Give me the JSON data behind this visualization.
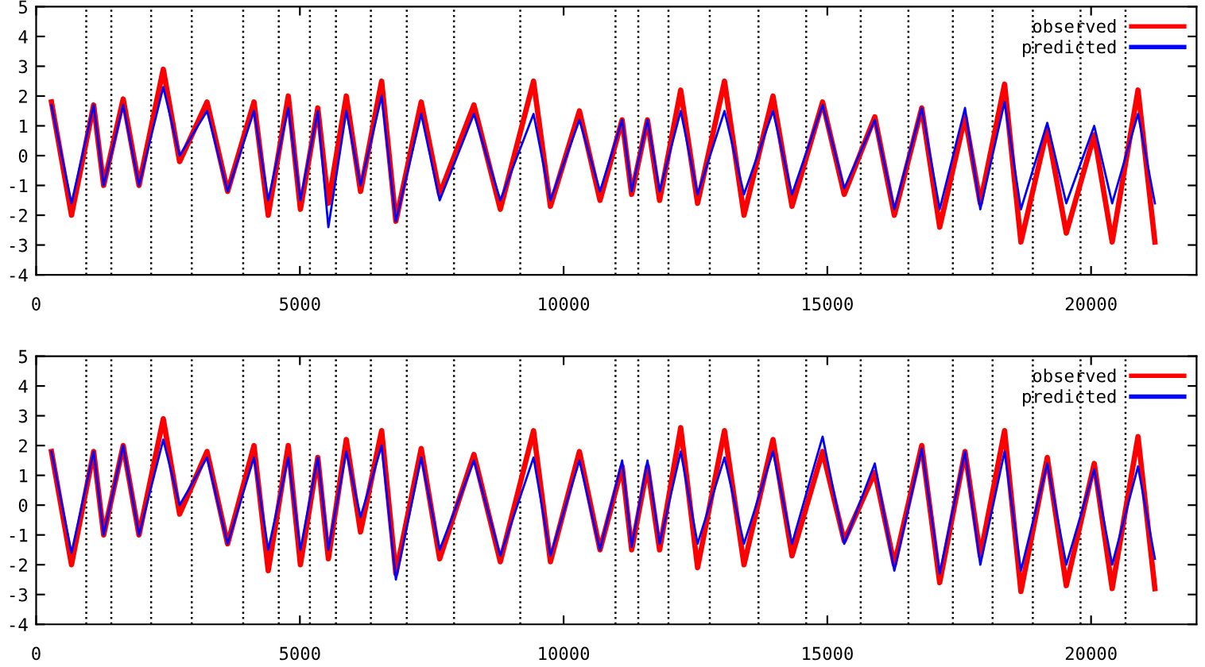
{
  "chart_data": [
    {
      "type": "line",
      "xlim": [
        0,
        22000
      ],
      "xticks": [
        0,
        5000,
        10000,
        15000,
        20000
      ],
      "ylim": [
        -4,
        5
      ],
      "yticks": [
        -4,
        -3,
        -2,
        -1,
        0,
        1,
        2,
        3,
        4,
        5
      ],
      "grid": false,
      "legend": "top right",
      "line_style": "solid",
      "marker": "none",
      "x": [
        290,
        670,
        1090,
        1280,
        1650,
        1950,
        2410,
        2720,
        3240,
        3630,
        4130,
        4400,
        4780,
        5010,
        5340,
        5540,
        5880,
        6150,
        6550,
        6820,
        7300,
        7650,
        8300,
        8800,
        9430,
        9750,
        10300,
        10690,
        11110,
        11290,
        11590,
        11820,
        12220,
        12540,
        13050,
        13420,
        13970,
        14330,
        14910,
        15320,
        15900,
        16270,
        16790,
        17130,
        17610,
        17900,
        18360,
        18670,
        19170,
        19530,
        20060,
        20400,
        20890,
        21210
      ],
      "series": [
        {
          "name": "observed",
          "color": "#ff0000",
          "values": [
            1.8,
            -2.0,
            1.7,
            -1.0,
            1.9,
            -1.0,
            2.9,
            -0.2,
            1.8,
            -1.2,
            1.8,
            -2.0,
            2.0,
            -1.8,
            1.6,
            -1.6,
            2.0,
            -1.2,
            2.5,
            -2.2,
            1.8,
            -1.3,
            1.7,
            -1.8,
            2.5,
            -1.7,
            1.5,
            -1.5,
            1.2,
            -1.3,
            1.2,
            -1.5,
            2.2,
            -1.6,
            2.5,
            -2.0,
            2.0,
            -1.7,
            1.8,
            -1.3,
            1.3,
            -2.0,
            1.6,
            -2.4,
            1.3,
            -1.6,
            2.4,
            -2.9,
            0.9,
            -2.6,
            0.7,
            -2.9,
            2.2,
            -2.9
          ]
        },
        {
          "name": "predicted",
          "color": "#0000ff",
          "values": [
            1.7,
            -1.6,
            1.7,
            -1.0,
            1.7,
            -1.0,
            2.3,
            0.0,
            1.5,
            -1.2,
            1.5,
            -1.5,
            1.6,
            -1.5,
            1.5,
            -2.4,
            1.5,
            -1.0,
            2.0,
            -2.2,
            1.4,
            -1.5,
            1.4,
            -1.5,
            1.4,
            -1.5,
            1.2,
            -1.2,
            1.2,
            -1.2,
            1.2,
            -1.2,
            1.5,
            -1.3,
            1.5,
            -1.3,
            1.5,
            -1.3,
            1.7,
            -1.1,
            1.2,
            -1.8,
            1.6,
            -1.8,
            1.6,
            -1.8,
            1.8,
            -1.8,
            1.1,
            -1.6,
            1.0,
            -1.6,
            1.4,
            -1.6
          ]
        }
      ],
      "ref_lines": [
        {
          "axis": "x",
          "value": 950,
          "color": "#000000",
          "line_style": "dotted"
        },
        {
          "axis": "x",
          "value": 1425,
          "color": "#000000",
          "line_style": "dotted"
        },
        {
          "axis": "x",
          "value": 2180,
          "color": "#000000",
          "line_style": "dotted"
        },
        {
          "axis": "x",
          "value": 2950,
          "color": "#000000",
          "line_style": "dotted"
        },
        {
          "axis": "x",
          "value": 3925,
          "color": "#000000",
          "line_style": "dotted"
        },
        {
          "axis": "x",
          "value": 4600,
          "color": "#000000",
          "line_style": "dotted"
        },
        {
          "axis": "x",
          "value": 5190,
          "color": "#000000",
          "line_style": "dotted"
        },
        {
          "axis": "x",
          "value": 5684,
          "color": "#000000",
          "line_style": "dotted"
        },
        {
          "axis": "x",
          "value": 6346,
          "color": "#000000",
          "line_style": "dotted"
        },
        {
          "axis": "x",
          "value": 7027,
          "color": "#000000",
          "line_style": "dotted"
        },
        {
          "axis": "x",
          "value": 7922,
          "color": "#000000",
          "line_style": "dotted"
        },
        {
          "axis": "x",
          "value": 9178,
          "color": "#000000",
          "line_style": "dotted"
        },
        {
          "axis": "x",
          "value": 10984,
          "color": "#000000",
          "line_style": "dotted"
        },
        {
          "axis": "x",
          "value": 11416,
          "color": "#000000",
          "line_style": "dotted"
        },
        {
          "axis": "x",
          "value": 11988,
          "color": "#000000",
          "line_style": "dotted"
        },
        {
          "axis": "x",
          "value": 12771,
          "color": "#000000",
          "line_style": "dotted"
        },
        {
          "axis": "x",
          "value": 13695,
          "color": "#000000",
          "line_style": "dotted"
        },
        {
          "axis": "x",
          "value": 14599,
          "color": "#000000",
          "line_style": "dotted"
        },
        {
          "axis": "x",
          "value": 15633,
          "color": "#000000",
          "line_style": "dotted"
        },
        {
          "axis": "x",
          "value": 16537,
          "color": "#000000",
          "line_style": "dotted"
        },
        {
          "axis": "x",
          "value": 17380,
          "color": "#000000",
          "line_style": "dotted"
        },
        {
          "axis": "x",
          "value": 18133,
          "color": "#000000",
          "line_style": "dotted"
        },
        {
          "axis": "x",
          "value": 18896,
          "color": "#000000",
          "line_style": "dotted"
        },
        {
          "axis": "x",
          "value": 19800,
          "color": "#000000",
          "line_style": "dotted"
        },
        {
          "axis": "x",
          "value": 20653,
          "color": "#000000",
          "line_style": "dotted"
        }
      ]
    },
    {
      "type": "line",
      "xlim": [
        0,
        22000
      ],
      "xticks": [
        0,
        5000,
        10000,
        15000,
        20000
      ],
      "ylim": [
        -4,
        5
      ],
      "yticks": [
        -4,
        -3,
        -2,
        -1,
        0,
        1,
        2,
        3,
        4,
        5
      ],
      "grid": false,
      "legend": "top right",
      "line_style": "solid",
      "marker": "none",
      "x": [
        290,
        670,
        1090,
        1280,
        1650,
        1950,
        2410,
        2720,
        3240,
        3630,
        4130,
        4400,
        4780,
        5010,
        5340,
        5540,
        5880,
        6150,
        6550,
        6820,
        7300,
        7650,
        8300,
        8800,
        9430,
        9750,
        10300,
        10690,
        11110,
        11290,
        11590,
        11820,
        12220,
        12540,
        13050,
        13420,
        13970,
        14330,
        14910,
        15320,
        15900,
        16270,
        16790,
        17130,
        17610,
        17900,
        18360,
        18670,
        19170,
        19530,
        20060,
        20400,
        20890,
        21210
      ],
      "series": [
        {
          "name": "observed",
          "color": "#ff0000",
          "values": [
            1.8,
            -2.0,
            1.8,
            -1.0,
            2.0,
            -1.0,
            2.9,
            -0.3,
            1.8,
            -1.3,
            2.0,
            -2.2,
            2.0,
            -2.0,
            1.6,
            -1.8,
            2.2,
            -0.9,
            2.5,
            -2.3,
            1.9,
            -1.8,
            1.7,
            -1.9,
            2.5,
            -1.9,
            1.8,
            -1.5,
            1.3,
            -1.5,
            1.3,
            -1.5,
            2.6,
            -2.1,
            2.5,
            -2.0,
            2.2,
            -1.7,
            1.8,
            -1.2,
            1.1,
            -2.0,
            2.0,
            -2.6,
            1.8,
            -1.7,
            2.5,
            -2.9,
            1.6,
            -2.7,
            1.4,
            -2.8,
            2.3,
            -2.8
          ]
        },
        {
          "name": "predicted",
          "color": "#0000ff",
          "values": [
            1.8,
            -1.6,
            1.8,
            -1.0,
            2.0,
            -1.0,
            2.2,
            0.0,
            1.6,
            -1.3,
            1.6,
            -1.5,
            1.6,
            -1.5,
            1.6,
            -1.5,
            1.8,
            -0.4,
            2.0,
            -2.5,
            1.6,
            -1.5,
            1.5,
            -1.7,
            1.6,
            -1.7,
            1.5,
            -1.5,
            1.5,
            -1.4,
            1.5,
            -1.3,
            1.8,
            -1.3,
            1.6,
            -1.3,
            1.8,
            -1.3,
            2.3,
            -1.3,
            1.4,
            -2.2,
            1.9,
            -2.3,
            1.8,
            -2.0,
            1.8,
            -2.2,
            1.4,
            -2.0,
            1.2,
            -2.0,
            1.3,
            -1.8
          ]
        }
      ],
      "ref_lines": [
        {
          "axis": "x",
          "value": 950,
          "color": "#000000",
          "line_style": "dotted"
        },
        {
          "axis": "x",
          "value": 1425,
          "color": "#000000",
          "line_style": "dotted"
        },
        {
          "axis": "x",
          "value": 2180,
          "color": "#000000",
          "line_style": "dotted"
        },
        {
          "axis": "x",
          "value": 2950,
          "color": "#000000",
          "line_style": "dotted"
        },
        {
          "axis": "x",
          "value": 3925,
          "color": "#000000",
          "line_style": "dotted"
        },
        {
          "axis": "x",
          "value": 4600,
          "color": "#000000",
          "line_style": "dotted"
        },
        {
          "axis": "x",
          "value": 5190,
          "color": "#000000",
          "line_style": "dotted"
        },
        {
          "axis": "x",
          "value": 5684,
          "color": "#000000",
          "line_style": "dotted"
        },
        {
          "axis": "x",
          "value": 6346,
          "color": "#000000",
          "line_style": "dotted"
        },
        {
          "axis": "x",
          "value": 7027,
          "color": "#000000",
          "line_style": "dotted"
        },
        {
          "axis": "x",
          "value": 7922,
          "color": "#000000",
          "line_style": "dotted"
        },
        {
          "axis": "x",
          "value": 9178,
          "color": "#000000",
          "line_style": "dotted"
        },
        {
          "axis": "x",
          "value": 10984,
          "color": "#000000",
          "line_style": "dotted"
        },
        {
          "axis": "x",
          "value": 11416,
          "color": "#000000",
          "line_style": "dotted"
        },
        {
          "axis": "x",
          "value": 11988,
          "color": "#000000",
          "line_style": "dotted"
        },
        {
          "axis": "x",
          "value": 12771,
          "color": "#000000",
          "line_style": "dotted"
        },
        {
          "axis": "x",
          "value": 13695,
          "color": "#000000",
          "line_style": "dotted"
        },
        {
          "axis": "x",
          "value": 14599,
          "color": "#000000",
          "line_style": "dotted"
        },
        {
          "axis": "x",
          "value": 15633,
          "color": "#000000",
          "line_style": "dotted"
        },
        {
          "axis": "x",
          "value": 16537,
          "color": "#000000",
          "line_style": "dotted"
        },
        {
          "axis": "x",
          "value": 17380,
          "color": "#000000",
          "line_style": "dotted"
        },
        {
          "axis": "x",
          "value": 18133,
          "color": "#000000",
          "line_style": "dotted"
        },
        {
          "axis": "x",
          "value": 18896,
          "color": "#000000",
          "line_style": "dotted"
        },
        {
          "axis": "x",
          "value": 19800,
          "color": "#000000",
          "line_style": "dotted"
        },
        {
          "axis": "x",
          "value": 20653,
          "color": "#000000",
          "line_style": "dotted"
        }
      ]
    }
  ]
}
